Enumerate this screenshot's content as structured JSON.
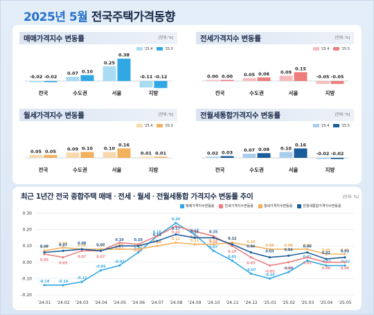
{
  "page": {
    "title_year_month": "2025년 5월",
    "title_rest": "전국주택가격동향"
  },
  "colors": {
    "sale": "#31a7e3",
    "sale_old": "#a9dcf3",
    "jeonse": "#ee7d7d",
    "jeonse_old": "#f6bcbc",
    "wolse": "#f2b15c",
    "wolse_old": "#f8d9ad",
    "combo": "#1a5d9b",
    "combo_old": "#a8cdeb"
  },
  "chart_data": [
    {
      "type": "bar",
      "title": "매매가격지수 변동률",
      "unit": "[단위: %]",
      "categories": [
        "전국",
        "수도권",
        "서울",
        "지방"
      ],
      "series": [
        {
          "name": "'25.4",
          "values": [
            -0.02,
            0.07,
            0.25,
            -0.11
          ]
        },
        {
          "name": "'25.5",
          "values": [
            -0.02,
            0.1,
            0.38,
            -0.12
          ]
        }
      ],
      "value_labels": [
        [
          "-0.02",
          "0.07",
          "0.25",
          "-0.11"
        ],
        [
          "-0.02",
          "0.10",
          "0.38",
          "-0.12"
        ]
      ],
      "colors": [
        "#a9dcf3",
        "#31a7e3"
      ],
      "scale": 0.4
    },
    {
      "type": "bar",
      "title": "전세가격지수 변동률",
      "unit": "[단위: %]",
      "categories": [
        "전국",
        "수도권",
        "서울",
        "지방"
      ],
      "series": [
        {
          "name": "'25.4",
          "values": [
            0.0,
            0.05,
            0.09,
            -0.05
          ]
        },
        {
          "name": "'25.5",
          "values": [
            0.0,
            0.06,
            0.15,
            -0.05
          ]
        }
      ],
      "value_labels": [
        [
          "0.00",
          "0.05",
          "0.09",
          "-0.05"
        ],
        [
          "0.00",
          "0.06",
          "0.15",
          "-0.05"
        ]
      ],
      "colors": [
        "#f6bcbc",
        "#ee7d7d"
      ],
      "scale": 0.4
    },
    {
      "type": "bar",
      "title": "월세가격지수 변동률",
      "unit": "[단위: %]",
      "categories": [
        "전국",
        "수도권",
        "서울",
        "지방"
      ],
      "series": [
        {
          "name": "'25.4",
          "values": [
            0.05,
            0.09,
            0.1,
            0.01
          ]
        },
        {
          "name": "'25.5",
          "values": [
            0.05,
            0.1,
            0.16,
            0.01
          ]
        }
      ],
      "value_labels": [
        [
          "0.05",
          "0.09",
          "0.10",
          "0.01"
        ],
        [
          "0.05",
          "0.10",
          "0.16",
          "0.01"
        ]
      ],
      "colors": [
        "#f8d9ad",
        "#f2b15c"
      ],
      "scale": 0.4
    },
    {
      "type": "bar",
      "title": "전월세통합가격지수 변동률",
      "unit": "[단위: %]",
      "categories": [
        "전국",
        "수도권",
        "서울",
        "지방"
      ],
      "series": [
        {
          "name": "'25.4",
          "values": [
            0.02,
            0.07,
            0.1,
            -0.02
          ]
        },
        {
          "name": "'25.5",
          "values": [
            0.03,
            0.08,
            0.16,
            -0.02
          ]
        }
      ],
      "value_labels": [
        [
          "0.02",
          "0.07",
          "0.10",
          "-0.02"
        ],
        [
          "0.03",
          "0.08",
          "0.16",
          "-0.02"
        ]
      ],
      "colors": [
        "#a8cdeb",
        "#1a5d9b"
      ],
      "scale": 0.4
    },
    {
      "type": "line",
      "title": "최근 1년간 전국 종합주택 매매ㆍ전세ㆍ월세ㆍ전월세통합 가격지수 변동률 추이",
      "unit": "[단위: %]",
      "x": [
        "'24.01",
        "'24.02",
        "'24.03",
        "'24.04",
        "'24.05",
        "'24.06",
        "'24.07",
        "'24.08",
        "'24.09",
        "'24.10",
        "'24.11",
        "'24.12",
        "'25.01",
        "'25.02",
        "'25.03",
        "'25.04",
        "'25.05"
      ],
      "ylim": [
        -0.2,
        0.3
      ],
      "yticks": [
        "0.30",
        "0.20",
        "0.10",
        "0.00",
        "-0.10",
        "-0.20"
      ],
      "grid": true,
      "series": [
        {
          "name": "매매가격지수변동률",
          "color": "#31a7e3",
          "values": [
            -0.14,
            -0.14,
            -0.12,
            -0.05,
            -0.02,
            0.06,
            0.16,
            0.24,
            0.17,
            0.07,
            0.01,
            -0.07,
            -0.1,
            -0.06,
            0.01,
            -0.02,
            -0.02
          ]
        },
        {
          "name": "전세가격지수변동률",
          "color": "#ee7d7d",
          "values": [
            0.05,
            0.03,
            0.07,
            0.07,
            0.12,
            0.11,
            0.16,
            0.22,
            0.19,
            0.16,
            0.1,
            0.03,
            -0.02,
            0.0,
            0.03,
            0.0,
            0.0
          ]
        },
        {
          "name": "월세가격지수변동률",
          "color": "#f2b15c",
          "values": [
            0.07,
            0.09,
            0.08,
            0.08,
            0.08,
            0.08,
            0.1,
            0.12,
            0.11,
            0.11,
            0.12,
            0.1,
            0.08,
            0.08,
            0.08,
            0.05,
            0.05
          ]
        },
        {
          "name": "전월세통합가격지수변동률",
          "color": "#1a5d9b",
          "values": [
            0.06,
            0.07,
            0.08,
            0.07,
            0.1,
            0.1,
            0.13,
            0.17,
            0.15,
            0.15,
            0.11,
            0.06,
            0.03,
            0.04,
            0.06,
            0.02,
            0.03
          ]
        }
      ]
    }
  ]
}
